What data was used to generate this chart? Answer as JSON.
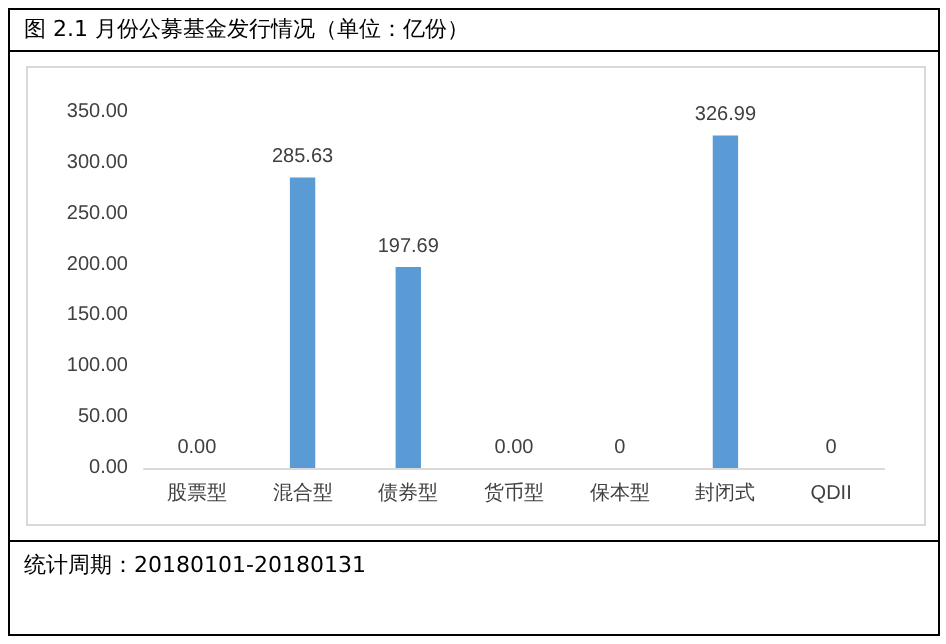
{
  "chart_data": {
    "type": "bar",
    "title": "图 2.1 月份公募基金发行情况（单位：亿份）",
    "categories": [
      "股票型",
      "混合型",
      "债券型",
      "货币型",
      "保本型",
      "封闭式",
      "QDII"
    ],
    "values": [
      0,
      285.63,
      197.69,
      0,
      0,
      326.99,
      0
    ],
    "value_labels": [
      "0.00",
      "285.63",
      "197.69",
      "0.00",
      "0",
      "326.99",
      "0"
    ],
    "color": "#5b9bd5",
    "ylim": [
      0,
      350
    ],
    "yticks": [
      {
        "value": 0,
        "label": "0.00"
      },
      {
        "value": 50,
        "label": "50.00"
      },
      {
        "value": 100,
        "label": "100.00"
      },
      {
        "value": 150,
        "label": "150.00"
      },
      {
        "value": 200,
        "label": "200.00"
      },
      {
        "value": 250,
        "label": "250.00"
      },
      {
        "value": 300,
        "label": "300.00"
      },
      {
        "value": 350,
        "label": "350.00"
      }
    ],
    "grid": false,
    "annotations": [
      "统计周期：20180101-20180131"
    ]
  }
}
